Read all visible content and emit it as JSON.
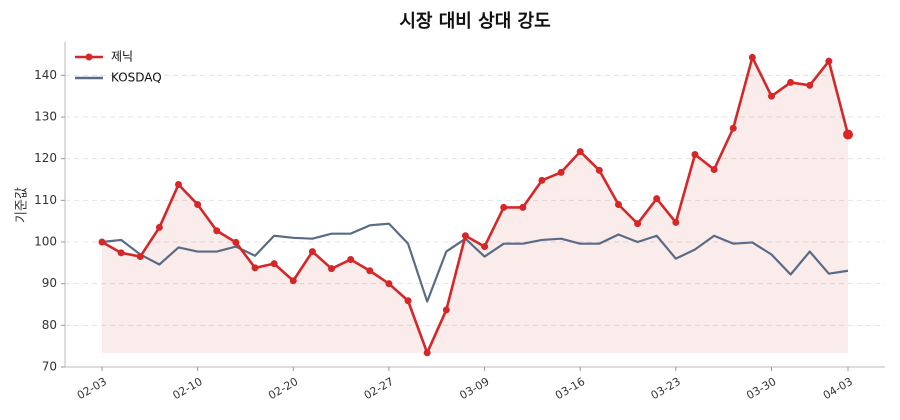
{
  "chart_data": {
    "type": "line",
    "title": "시장 대비 상대 강도",
    "y_label": "기준값",
    "categories": [
      "02-03",
      null,
      null,
      null,
      null,
      "02-10",
      null,
      null,
      null,
      null,
      "02-20",
      null,
      null,
      null,
      null,
      "02-27",
      null,
      null,
      null,
      null,
      "03-09",
      null,
      null,
      null,
      null,
      "03-16",
      null,
      null,
      null,
      null,
      "03-23",
      null,
      null,
      null,
      null,
      "03-30",
      null,
      null,
      null,
      "04-03"
    ],
    "series": [
      {
        "name": "제닉",
        "color": "#d62728",
        "values": [
          100,
          97.4,
          96.5,
          103.5,
          113.8,
          109,
          102.7,
          99.9,
          93.8,
          94.8,
          90.7,
          97.7,
          93.6,
          95.8,
          93.1,
          90,
          85.9,
          73.4,
          83.7,
          101.5,
          98.9,
          108.3,
          108.3,
          114.8,
          116.7,
          121.7,
          117.2,
          109,
          104.4,
          110.4,
          104.7,
          121,
          117.4,
          127.3,
          144.3,
          135,
          138.3,
          137.6,
          143.4,
          125.8
        ]
      },
      {
        "name": "KOSDAQ",
        "color": "#5a6b85",
        "values": [
          100,
          100.5,
          97,
          94.6,
          98.7,
          97.7,
          97.7,
          98.9,
          96.7,
          101.5,
          101,
          100.8,
          102,
          102,
          104,
          104.4,
          99.6,
          85.7,
          97.7,
          100.8,
          96.5,
          99.6,
          99.6,
          100.5,
          100.8,
          99.6,
          99.6,
          101.8,
          100,
          101.5,
          96,
          98.2,
          101.5,
          99.6,
          99.9,
          97,
          92.2,
          97.7,
          92.4,
          93.1
        ]
      }
    ],
    "ylim": [
      70,
      148
    ],
    "yticks": [
      70,
      80,
      90,
      100,
      110,
      120,
      130,
      140
    ],
    "grid": true,
    "legend": "upper-left"
  }
}
